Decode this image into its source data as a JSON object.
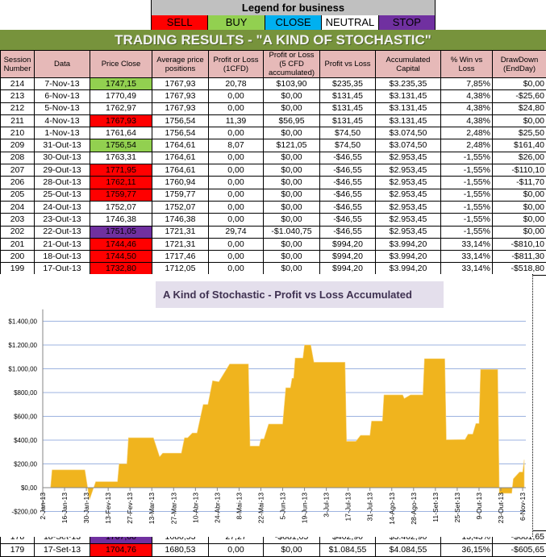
{
  "legend": {
    "title": "Legend for business",
    "items": [
      {
        "label": "SELL",
        "color": "#ff0000",
        "text": "#000000"
      },
      {
        "label": "BUY",
        "color": "#92d050",
        "text": "#000000"
      },
      {
        "label": "CLOSE",
        "color": "#00b0f0",
        "text": "#000000"
      },
      {
        "label": "NEUTRAL",
        "color": "#ffffff",
        "text": "#000000"
      },
      {
        "label": "STOP LOSS",
        "color": "#7030a0",
        "text": "#000000"
      }
    ]
  },
  "title": "TRADING RESULTS - \"A KIND OF STOCHASTIC\"",
  "table": {
    "columns": [
      "Session Number",
      "Data",
      "Price Close",
      "Average price positions",
      "Profit or Loss (1CFD)",
      "Profit or Loss (5 CFD accumulated)",
      "Profit vs Loss",
      "Accumulated Capital",
      "% Win vs Loss",
      "DrawDown (EndDay)"
    ],
    "rows": [
      {
        "status": "BUY",
        "cells": [
          "214",
          "7-Nov-13",
          "1747,15",
          "1767,93",
          "20,78",
          "$103,90",
          "$235,35",
          "$3.235,35",
          "7,85%",
          "$0,00"
        ]
      },
      {
        "status": "NEUTRAL",
        "cells": [
          "213",
          "6-Nov-13",
          "1770,49",
          "1767,93",
          "0,00",
          "$0,00",
          "$131,45",
          "$3.131,45",
          "4,38%",
          "-$25,60"
        ]
      },
      {
        "status": "NEUTRAL",
        "cells": [
          "212",
          "5-Nov-13",
          "1762,97",
          "1767,93",
          "0,00",
          "$0,00",
          "$131,45",
          "$3.131,45",
          "4,38%",
          "$24,80"
        ]
      },
      {
        "status": "SELL",
        "cells": [
          "211",
          "4-Nov-13",
          "1767,93",
          "1756,54",
          "11,39",
          "$56,95",
          "$131,45",
          "$3.131,45",
          "4,38%",
          "$0,00"
        ]
      },
      {
        "status": "NEUTRAL",
        "cells": [
          "210",
          "1-Nov-13",
          "1761,64",
          "1756,54",
          "0,00",
          "$0,00",
          "$74,50",
          "$3.074,50",
          "2,48%",
          "$25,50"
        ]
      },
      {
        "status": "BUY",
        "cells": [
          "209",
          "31-Out-13",
          "1756,54",
          "1764,61",
          "8,07",
          "$121,05",
          "$74,50",
          "$3.074,50",
          "2,48%",
          "$161,40"
        ]
      },
      {
        "status": "NEUTRAL",
        "cells": [
          "208",
          "30-Out-13",
          "1763,31",
          "1764,61",
          "0,00",
          "$0,00",
          "-$46,55",
          "$2.953,45",
          "-1,55%",
          "$26,00"
        ]
      },
      {
        "status": "SELL",
        "cells": [
          "207",
          "29-Out-13",
          "1771,95",
          "1764,61",
          "0,00",
          "$0,00",
          "-$46,55",
          "$2.953,45",
          "-1,55%",
          "-$110,10"
        ]
      },
      {
        "status": "SELL",
        "cells": [
          "206",
          "28-Out-13",
          "1762,11",
          "1760,94",
          "0,00",
          "$0,00",
          "-$46,55",
          "$2.953,45",
          "-1,55%",
          "-$11,70"
        ]
      },
      {
        "status": "SELL",
        "cells": [
          "205",
          "25-Out-13",
          "1759,77",
          "1759,77",
          "0,00",
          "$0,00",
          "-$46,55",
          "$2.953,45",
          "-1,55%",
          "$0,00"
        ]
      },
      {
        "status": "NEUTRAL",
        "cells": [
          "204",
          "24-Out-13",
          "1752,07",
          "1752,07",
          "0,00",
          "$0,00",
          "-$46,55",
          "$2.953,45",
          "-1,55%",
          "$0,00"
        ]
      },
      {
        "status": "NEUTRAL",
        "cells": [
          "203",
          "23-Out-13",
          "1746,38",
          "1746,38",
          "0,00",
          "$0,00",
          "-$46,55",
          "$2.953,45",
          "-1,55%",
          "$0,00"
        ]
      },
      {
        "status": "STOP LOSS",
        "cells": [
          "202",
          "22-Out-13",
          "1751,05",
          "1721,31",
          "29,74",
          "-$1.040,75",
          "-$46,55",
          "$2.953,45",
          "-1,55%",
          "$0,00"
        ]
      },
      {
        "status": "SELL",
        "cells": [
          "201",
          "21-Out-13",
          "1744,46",
          "1721,31",
          "0,00",
          "$0,00",
          "$994,20",
          "$3.994,20",
          "33,14%",
          "-$810,10"
        ]
      },
      {
        "status": "SELL",
        "cells": [
          "200",
          "18-Out-13",
          "1744,50",
          "1717,46",
          "0,00",
          "$0,00",
          "$994,20",
          "$3.994,20",
          "33,14%",
          "-$811,30"
        ]
      },
      {
        "status": "SELL",
        "cells": [
          "199",
          "17-Out-13",
          "1732,80",
          "1712,05",
          "0,00",
          "$0,00",
          "$994,20",
          "$3.994,20",
          "33,14%",
          "-$518,80"
        ]
      }
    ],
    "rows_below": [
      {
        "status": "STOP LOSS",
        "cells": [
          "178",
          "18-Set-13",
          "1707,00",
          "1680,53",
          "27,27",
          "-$681,65",
          "$402,90",
          "$3.402,90",
          "13,43%",
          "-$681,65"
        ]
      },
      {
        "status": "SELL",
        "cells": [
          "179",
          "17-Set-13",
          "1704,76",
          "1680,53",
          "0,00",
          "$0,00",
          "$1.084,55",
          "$4.084,55",
          "36,15%",
          "-$605,65"
        ]
      }
    ]
  },
  "chart_data": {
    "type": "area",
    "title": "A Kind of Stochastic - Profit vs Loss Accumulated",
    "color": "#f0b41e",
    "grid_color": "#9db3e0",
    "grid": true,
    "ylim": [
      -200,
      1500
    ],
    "yticks": [
      -200,
      0,
      200,
      400,
      600,
      800,
      1000,
      1200,
      1400
    ],
    "ytick_labels": [
      "-$200,00",
      "$0,00",
      "$200,00",
      "$400,00",
      "$600,00",
      "$800,00",
      "$1.000,00",
      "$1.200,00",
      "$1.400,00"
    ],
    "xlim": [
      "2013-01-02",
      "2013-11-07"
    ],
    "xtick_dates": [
      "2013-01-02",
      "2013-01-16",
      "2013-01-30",
      "2013-02-13",
      "2013-02-27",
      "2013-03-13",
      "2013-03-27",
      "2013-04-10",
      "2013-04-24",
      "2013-05-08",
      "2013-05-22",
      "2013-06-05",
      "2013-06-19",
      "2013-07-03",
      "2013-07-17",
      "2013-07-31",
      "2013-08-14",
      "2013-08-28",
      "2013-09-11",
      "2013-09-25",
      "2013-10-09",
      "2013-10-23",
      "2013-11-06"
    ],
    "xtick_labels": [
      "2-Jan-13",
      "16-Jan-13",
      "30-Jan-13",
      "13-Fev-13",
      "27-Fev-13",
      "13-Mar-13",
      "27-Mar-13",
      "10-Abr-13",
      "24-Abr-13",
      "8-Mai-13",
      "22-Mai-13",
      "5-Jun-13",
      "19-Jun-13",
      "3-Jul-13",
      "17-Jul-13",
      "31-Jul-13",
      "14-Ago-13",
      "28-Ago-13",
      "11-Set-13",
      "25-Set-13",
      "9-Out-13",
      "23-Out-13",
      "6-Nov-13"
    ],
    "points": [
      [
        "2013-01-07",
        0
      ],
      [
        "2013-01-08",
        150
      ],
      [
        "2013-01-29",
        150
      ],
      [
        "2013-02-01",
        -100
      ],
      [
        "2013-02-05",
        50
      ],
      [
        "2013-02-19",
        50
      ],
      [
        "2013-02-20",
        200
      ],
      [
        "2013-02-25",
        200
      ],
      [
        "2013-02-26",
        420
      ],
      [
        "2013-03-14",
        420
      ],
      [
        "2013-03-18",
        260
      ],
      [
        "2013-03-20",
        290
      ],
      [
        "2013-04-01",
        290
      ],
      [
        "2013-04-03",
        420
      ],
      [
        "2013-04-05",
        420
      ],
      [
        "2013-04-08",
        460
      ],
      [
        "2013-04-11",
        460
      ],
      [
        "2013-04-15",
        700
      ],
      [
        "2013-04-18",
        700
      ],
      [
        "2013-04-21",
        900
      ],
      [
        "2013-04-25",
        890
      ],
      [
        "2013-05-02",
        1040
      ],
      [
        "2013-05-14",
        1040
      ],
      [
        "2013-05-15",
        350
      ],
      [
        "2013-05-21",
        350
      ],
      [
        "2013-05-22",
        410
      ],
      [
        "2013-05-24",
        410
      ],
      [
        "2013-05-27",
        535
      ],
      [
        "2013-06-05",
        535
      ],
      [
        "2013-06-07",
        840
      ],
      [
        "2013-06-10",
        840
      ],
      [
        "2013-06-11",
        920
      ],
      [
        "2013-06-12",
        920
      ],
      [
        "2013-06-13",
        1090
      ],
      [
        "2013-06-18",
        1090
      ],
      [
        "2013-06-19",
        1200
      ],
      [
        "2013-06-23",
        1200
      ],
      [
        "2013-06-25",
        1055
      ],
      [
        "2013-07-15",
        1055
      ],
      [
        "2013-07-16",
        390
      ],
      [
        "2013-07-22",
        390
      ],
      [
        "2013-07-25",
        440
      ],
      [
        "2013-07-31",
        440
      ],
      [
        "2013-08-01",
        560
      ],
      [
        "2013-08-08",
        560
      ],
      [
        "2013-08-09",
        780
      ],
      [
        "2013-08-21",
        780
      ],
      [
        "2013-08-22",
        750
      ],
      [
        "2013-08-26",
        780
      ],
      [
        "2013-09-03",
        780
      ],
      [
        "2013-09-04",
        1084.55
      ],
      [
        "2013-09-17",
        1084.55
      ],
      [
        "2013-09-18",
        402.9
      ],
      [
        "2013-09-30",
        405
      ],
      [
        "2013-10-02",
        450
      ],
      [
        "2013-10-05",
        450
      ],
      [
        "2013-10-07",
        540
      ],
      [
        "2013-10-09",
        540
      ],
      [
        "2013-10-10",
        994.2
      ],
      [
        "2013-10-21",
        994.2
      ],
      [
        "2013-10-22",
        -46.55
      ],
      [
        "2013-10-30",
        -46.55
      ],
      [
        "2013-10-31",
        74.5
      ],
      [
        "2013-11-04",
        131.45
      ],
      [
        "2013-11-06",
        131.45
      ],
      [
        "2013-11-07",
        235.35
      ]
    ]
  }
}
